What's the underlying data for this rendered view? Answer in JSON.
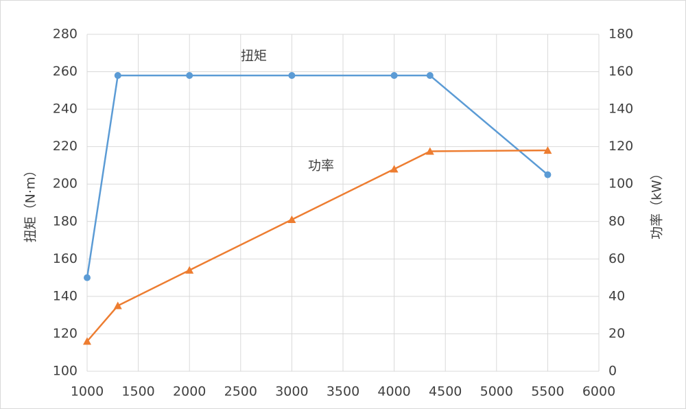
{
  "chart_data": {
    "type": "line",
    "x": [
      1000,
      1300,
      2000,
      3000,
      4000,
      4350,
      5500
    ],
    "series": [
      {
        "name": "扭矩",
        "color": "#5b9bd5",
        "marker": "circle",
        "axis": "y",
        "values": [
          150,
          258,
          258,
          258,
          258,
          258,
          205
        ]
      },
      {
        "name": "功率",
        "color": "#ed7d31",
        "marker": "triangle",
        "axis": "y2",
        "values": [
          16,
          35,
          54,
          81,
          108,
          117.5,
          118
        ]
      }
    ],
    "annotations": [
      "扭矩",
      "功率"
    ],
    "ylabel": "扭矩（N·m）",
    "y2label": "功率（kW）",
    "xlim": [
      1000,
      6000
    ],
    "xticks": [
      1000,
      1500,
      2000,
      2500,
      3000,
      3500,
      4000,
      4500,
      5000,
      5500,
      6000
    ],
    "ylim": [
      100,
      280
    ],
    "yticks": [
      100,
      120,
      140,
      160,
      180,
      200,
      220,
      240,
      260,
      280
    ],
    "y2lim": [
      0,
      180
    ],
    "y2ticks": [
      0,
      20,
      40,
      60,
      80,
      100,
      120,
      140,
      160,
      180
    ],
    "grid": true
  }
}
